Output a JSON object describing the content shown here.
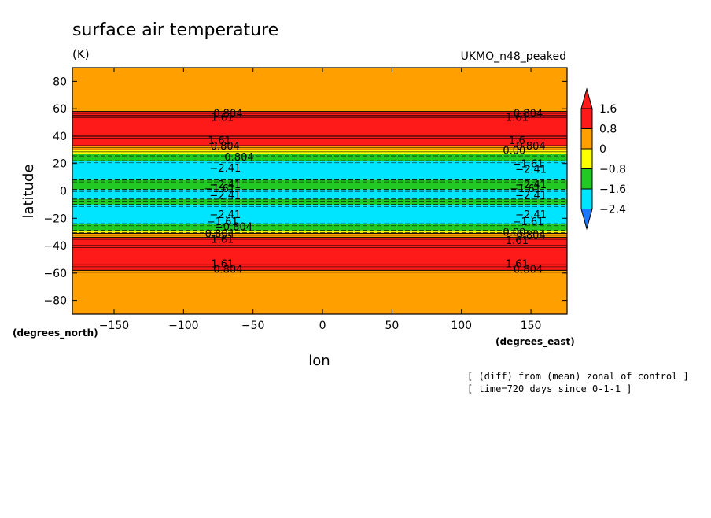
{
  "chart_data": {
    "type": "heatmap",
    "title": "surface air temperature",
    "units": "(K)",
    "model": "UKMO_n48_peaked",
    "xlabel": "lon",
    "ylabel": "latitude",
    "x_unit_label": "(degrees_east)",
    "y_unit_label": "(degrees_north)",
    "xlim": [
      -180,
      176
    ],
    "ylim": [
      -90,
      90
    ],
    "x_ticks": [
      -150,
      -100,
      -50,
      0,
      50,
      100,
      150
    ],
    "x_tick_labels": [
      "−150",
      "−100",
      "−50",
      "0",
      "50",
      "100",
      "150"
    ],
    "y_ticks": [
      80,
      60,
      40,
      20,
      0,
      -20,
      -40,
      -60,
      -80
    ],
    "y_tick_labels": [
      "80",
      "60",
      "40",
      "20",
      "0",
      "−20",
      "−40",
      "−60",
      "−80"
    ],
    "colorbar": {
      "levels": [
        -2.4,
        -1.6,
        -0.8,
        0,
        0.8,
        1.6
      ],
      "labels": [
        "−2.4",
        "−1.6",
        "−0.8",
        "0",
        "0.8",
        "1.6"
      ],
      "colors": [
        "#1e78ff",
        "#00e5ff",
        "#22c922",
        "#ffff00",
        "#ff9f00",
        "#ff1a1a"
      ],
      "under_color": "#1e78ff",
      "over_color": "#ff1a1a"
    },
    "bands": [
      {
        "lat_min": 58,
        "lat_max": 90,
        "value": 0.4
      },
      {
        "lat_min": 55,
        "lat_max": 58,
        "value": 1.2
      },
      {
        "lat_min": 40,
        "lat_max": 55,
        "value": 1.9
      },
      {
        "lat_min": 33,
        "lat_max": 40,
        "value": 1.2
      },
      {
        "lat_min": 30,
        "lat_max": 33,
        "value": 0.4
      },
      {
        "lat_min": 27,
        "lat_max": 30,
        "value": -0.4
      },
      {
        "lat_min": 22,
        "lat_max": 27,
        "value": -1.2
      },
      {
        "lat_min": 8,
        "lat_max": 22,
        "value": -2.0
      },
      {
        "lat_min": 1,
        "lat_max": 8,
        "value": -1.2
      },
      {
        "lat_min": -6,
        "lat_max": 1,
        "value": -2.0
      },
      {
        "lat_min": -10,
        "lat_max": -6,
        "value": -1.2
      },
      {
        "lat_min": -24,
        "lat_max": -10,
        "value": -2.0
      },
      {
        "lat_min": -29,
        "lat_max": -24,
        "value": -1.2
      },
      {
        "lat_min": -31,
        "lat_max": -29,
        "value": -0.4
      },
      {
        "lat_min": -34,
        "lat_max": -31,
        "value": 0.4
      },
      {
        "lat_min": -40,
        "lat_max": -34,
        "value": 1.2
      },
      {
        "lat_min": -54,
        "lat_max": -40,
        "value": 1.9
      },
      {
        "lat_min": -58,
        "lat_max": -54,
        "value": 1.2
      },
      {
        "lat_min": -90,
        "lat_max": -58,
        "value": 0.4
      }
    ],
    "contour_labels": [
      {
        "text": "0.804",
        "lon": -68,
        "lat": 57
      },
      {
        "text": "1.61",
        "lon": -72,
        "lat": 54
      },
      {
        "text": "0.804",
        "lon": 148,
        "lat": 57
      },
      {
        "text": "1.61",
        "lon": 140,
        "lat": 54
      },
      {
        "text": "1.61",
        "lon": -74,
        "lat": 37
      },
      {
        "text": "0.804",
        "lon": -70,
        "lat": 33
      },
      {
        "text": "0.804",
        "lon": -60,
        "lat": 25
      },
      {
        "text": "−2.41",
        "lon": -70,
        "lat": 17
      },
      {
        "text": "1.6",
        "lon": 140,
        "lat": 37
      },
      {
        "text": "0.804",
        "lon": 150,
        "lat": 33
      },
      {
        "text": "0.00",
        "lon": 138,
        "lat": 30
      },
      {
        "text": "−1.61",
        "lon": 148,
        "lat": 20
      },
      {
        "text": "−2.41",
        "lon": 150,
        "lat": 16
      },
      {
        "text": "−2.41",
        "lon": -70,
        "lat": 5
      },
      {
        "text": "−1.61",
        "lon": -74,
        "lat": 2
      },
      {
        "text": "−2.41",
        "lon": -70,
        "lat": -3
      },
      {
        "text": "−2.41",
        "lon": 150,
        "lat": 5
      },
      {
        "text": "−1.61",
        "lon": 146,
        "lat": 2
      },
      {
        "text": "−2.41",
        "lon": 150,
        "lat": -3
      },
      {
        "text": "−2.41",
        "lon": -70,
        "lat": -17
      },
      {
        "text": "−1.61",
        "lon": -72,
        "lat": -22
      },
      {
        "text": "−0.804",
        "lon": -64,
        "lat": -26
      },
      {
        "text": "−2.41",
        "lon": 150,
        "lat": -17
      },
      {
        "text": "−1.61",
        "lon": 148,
        "lat": -22
      },
      {
        "text": "0.00",
        "lon": 138,
        "lat": -30
      },
      {
        "text": "0.804",
        "lon": -74,
        "lat": -31
      },
      {
        "text": "1.61",
        "lon": -72,
        "lat": -35
      },
      {
        "text": "0.804",
        "lon": 150,
        "lat": -32
      },
      {
        "text": "1.61",
        "lon": 140,
        "lat": -36
      },
      {
        "text": "1.61",
        "lon": -72,
        "lat": -53
      },
      {
        "text": "0.804",
        "lon": -68,
        "lat": -57
      },
      {
        "text": "1.61",
        "lon": 140,
        "lat": -53
      },
      {
        "text": "0.804",
        "lon": 148,
        "lat": -57
      }
    ]
  },
  "notes": {
    "line1": "[ (diff) from (mean) zonal of control ]",
    "line2": "[ time=720 days since 0-1-1 ]"
  }
}
